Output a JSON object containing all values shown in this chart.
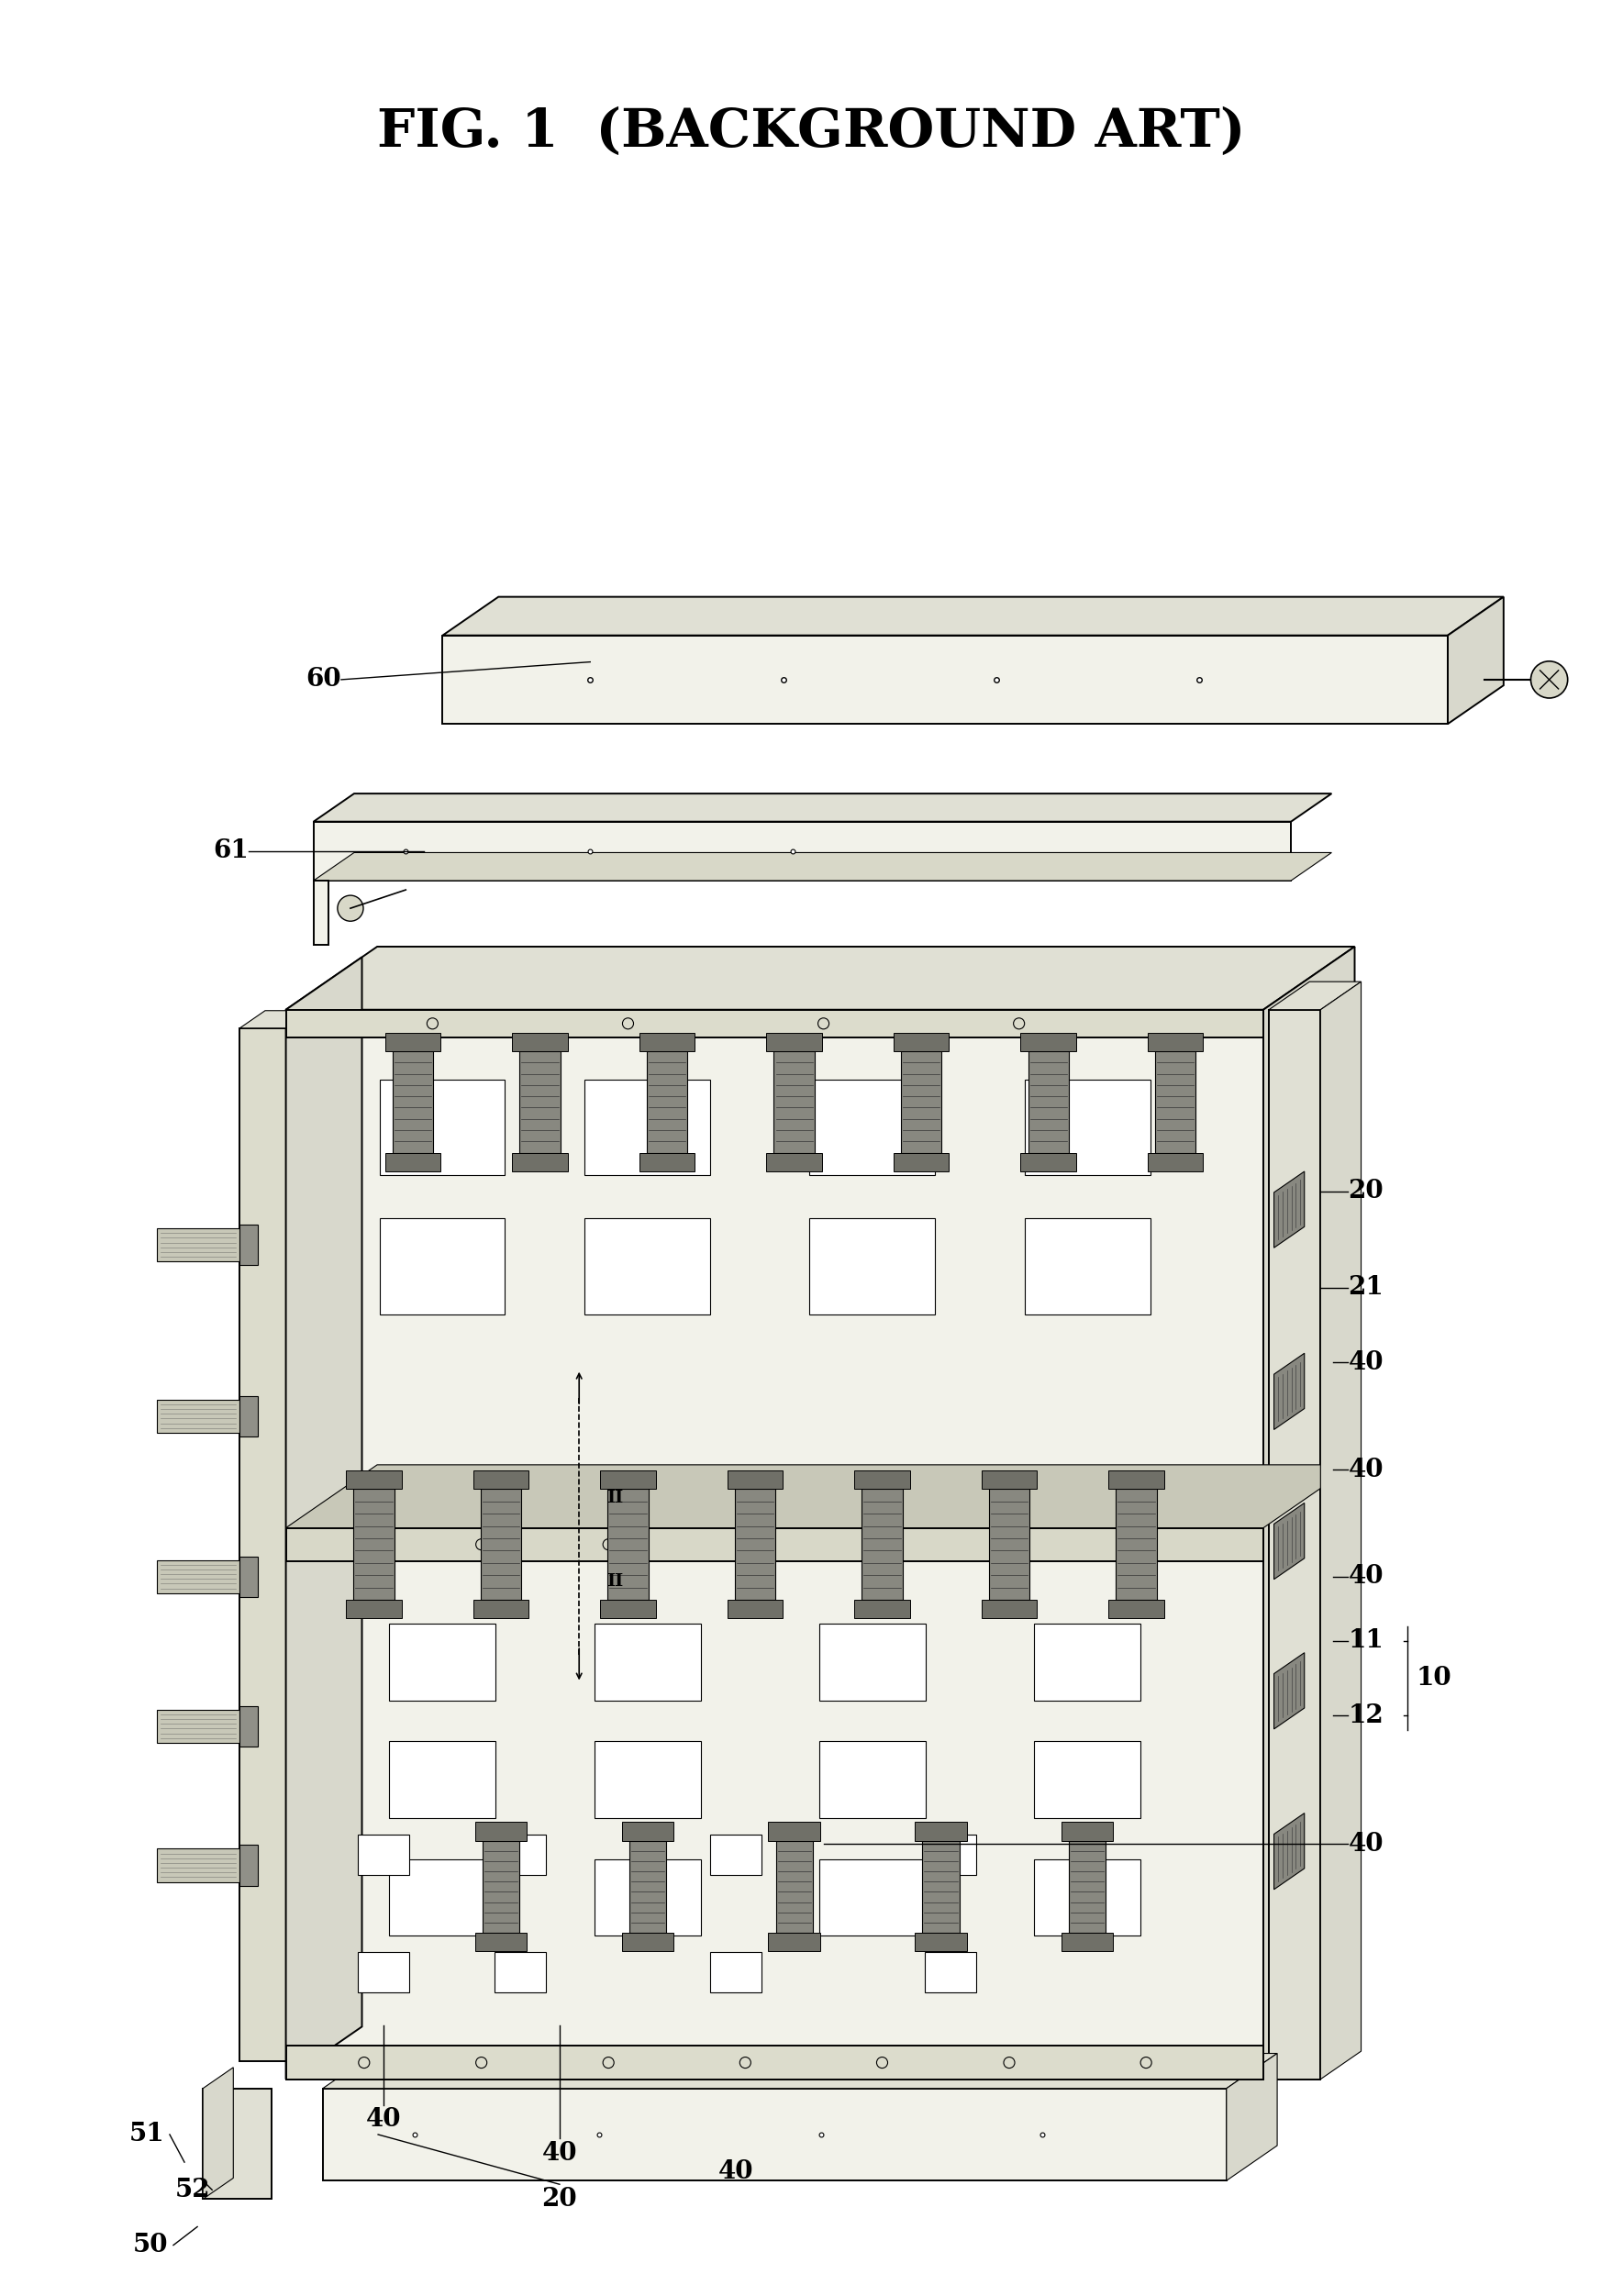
{
  "title": "FIG. 1  (BACKGROUND ART)",
  "bg_color": "#ffffff",
  "title_fontsize": 42,
  "lw_main": 1.4,
  "lw_thin": 0.8,
  "face_fill": "#f2f2ea",
  "top_fill": "#e0e0d4",
  "side_fill": "#d8d8cc",
  "rail_fill": "#e8e8dc",
  "connector_fill": "#888880",
  "label_fs": 20,
  "anno_fs": 16
}
